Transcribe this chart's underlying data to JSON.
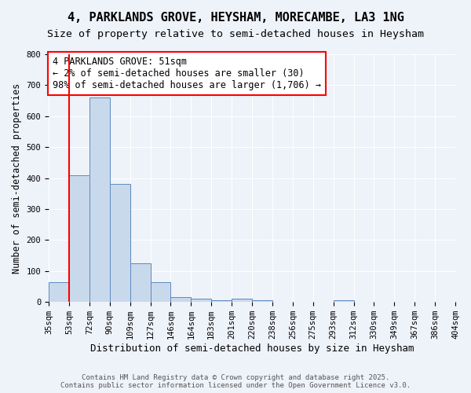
{
  "title": "4, PARKLANDS GROVE, HEYSHAM, MORECAMBE, LA3 1NG",
  "subtitle": "Size of property relative to semi-detached houses in Heysham",
  "bar_values": [
    65,
    410,
    660,
    380,
    125,
    65,
    15,
    10,
    5,
    10,
    5,
    0,
    0,
    0,
    5,
    0,
    0,
    0,
    0,
    0
  ],
  "bin_labels": [
    "35sqm",
    "53sqm",
    "72sqm",
    "90sqm",
    "109sqm",
    "127sqm",
    "146sqm",
    "164sqm",
    "183sqm",
    "201sqm",
    "220sqm",
    "238sqm",
    "256sqm",
    "275sqm",
    "293sqm",
    "312sqm",
    "330sqm",
    "349sqm",
    "367sqm",
    "386sqm",
    "404sqm"
  ],
  "bar_color": "#c9d9ec",
  "bar_edge_color": "#5a8abf",
  "red_line_x": 1,
  "annotation_text": "4 PARKLANDS GROVE: 51sqm\n← 2% of semi-detached houses are smaller (30)\n98% of semi-detached houses are larger (1,706) →",
  "ylabel": "Number of semi-detached properties",
  "xlabel": "Distribution of semi-detached houses by size in Heysham",
  "ylim": [
    0,
    800
  ],
  "yticks": [
    0,
    100,
    200,
    300,
    400,
    500,
    600,
    700,
    800
  ],
  "footer_line1": "Contains HM Land Registry data © Crown copyright and database right 2025.",
  "footer_line2": "Contains public sector information licensed under the Open Government Licence v3.0.",
  "bg_color": "#eef2f9",
  "grid_color": "#ffffff",
  "title_fontsize": 11,
  "subtitle_fontsize": 9.5,
  "annotation_fontsize": 8.5,
  "axis_label_fontsize": 8.5,
  "tick_fontsize": 7.5,
  "footer_fontsize": 6.5
}
